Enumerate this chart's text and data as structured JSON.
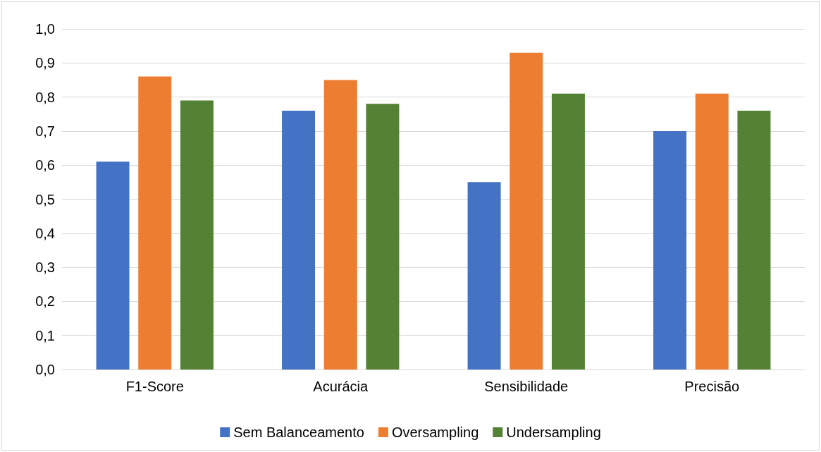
{
  "chart_data": {
    "type": "bar",
    "categories": [
      "F1-Score",
      "Acurácia",
      "Sensibilidade",
      "Precisão"
    ],
    "series": [
      {
        "name": "Sem Balanceamento",
        "color": "#4472c4",
        "values": [
          0.61,
          0.76,
          0.55,
          0.7
        ]
      },
      {
        "name": "Oversampling",
        "color": "#ed7d31",
        "values": [
          0.86,
          0.85,
          0.93,
          0.81
        ]
      },
      {
        "name": "Undersampling",
        "color": "#548235",
        "values": [
          0.79,
          0.78,
          0.81,
          0.76
        ]
      }
    ],
    "ylim": [
      0,
      1
    ],
    "yticks": [
      {
        "value": 0,
        "label": "0,0"
      },
      {
        "value": 0.1,
        "label": "0,1"
      },
      {
        "value": 0.2,
        "label": "0,2"
      },
      {
        "value": 0.3,
        "label": "0,3"
      },
      {
        "value": 0.4,
        "label": "0,4"
      },
      {
        "value": 0.5,
        "label": "0,5"
      },
      {
        "value": 0.6,
        "label": "0,6"
      },
      {
        "value": 0.7,
        "label": "0,7"
      },
      {
        "value": 0.8,
        "label": "0,8"
      },
      {
        "value": 0.9,
        "label": "0,9"
      },
      {
        "value": 1,
        "label": "1,0"
      }
    ],
    "grid": "y",
    "legend": "bottom"
  }
}
